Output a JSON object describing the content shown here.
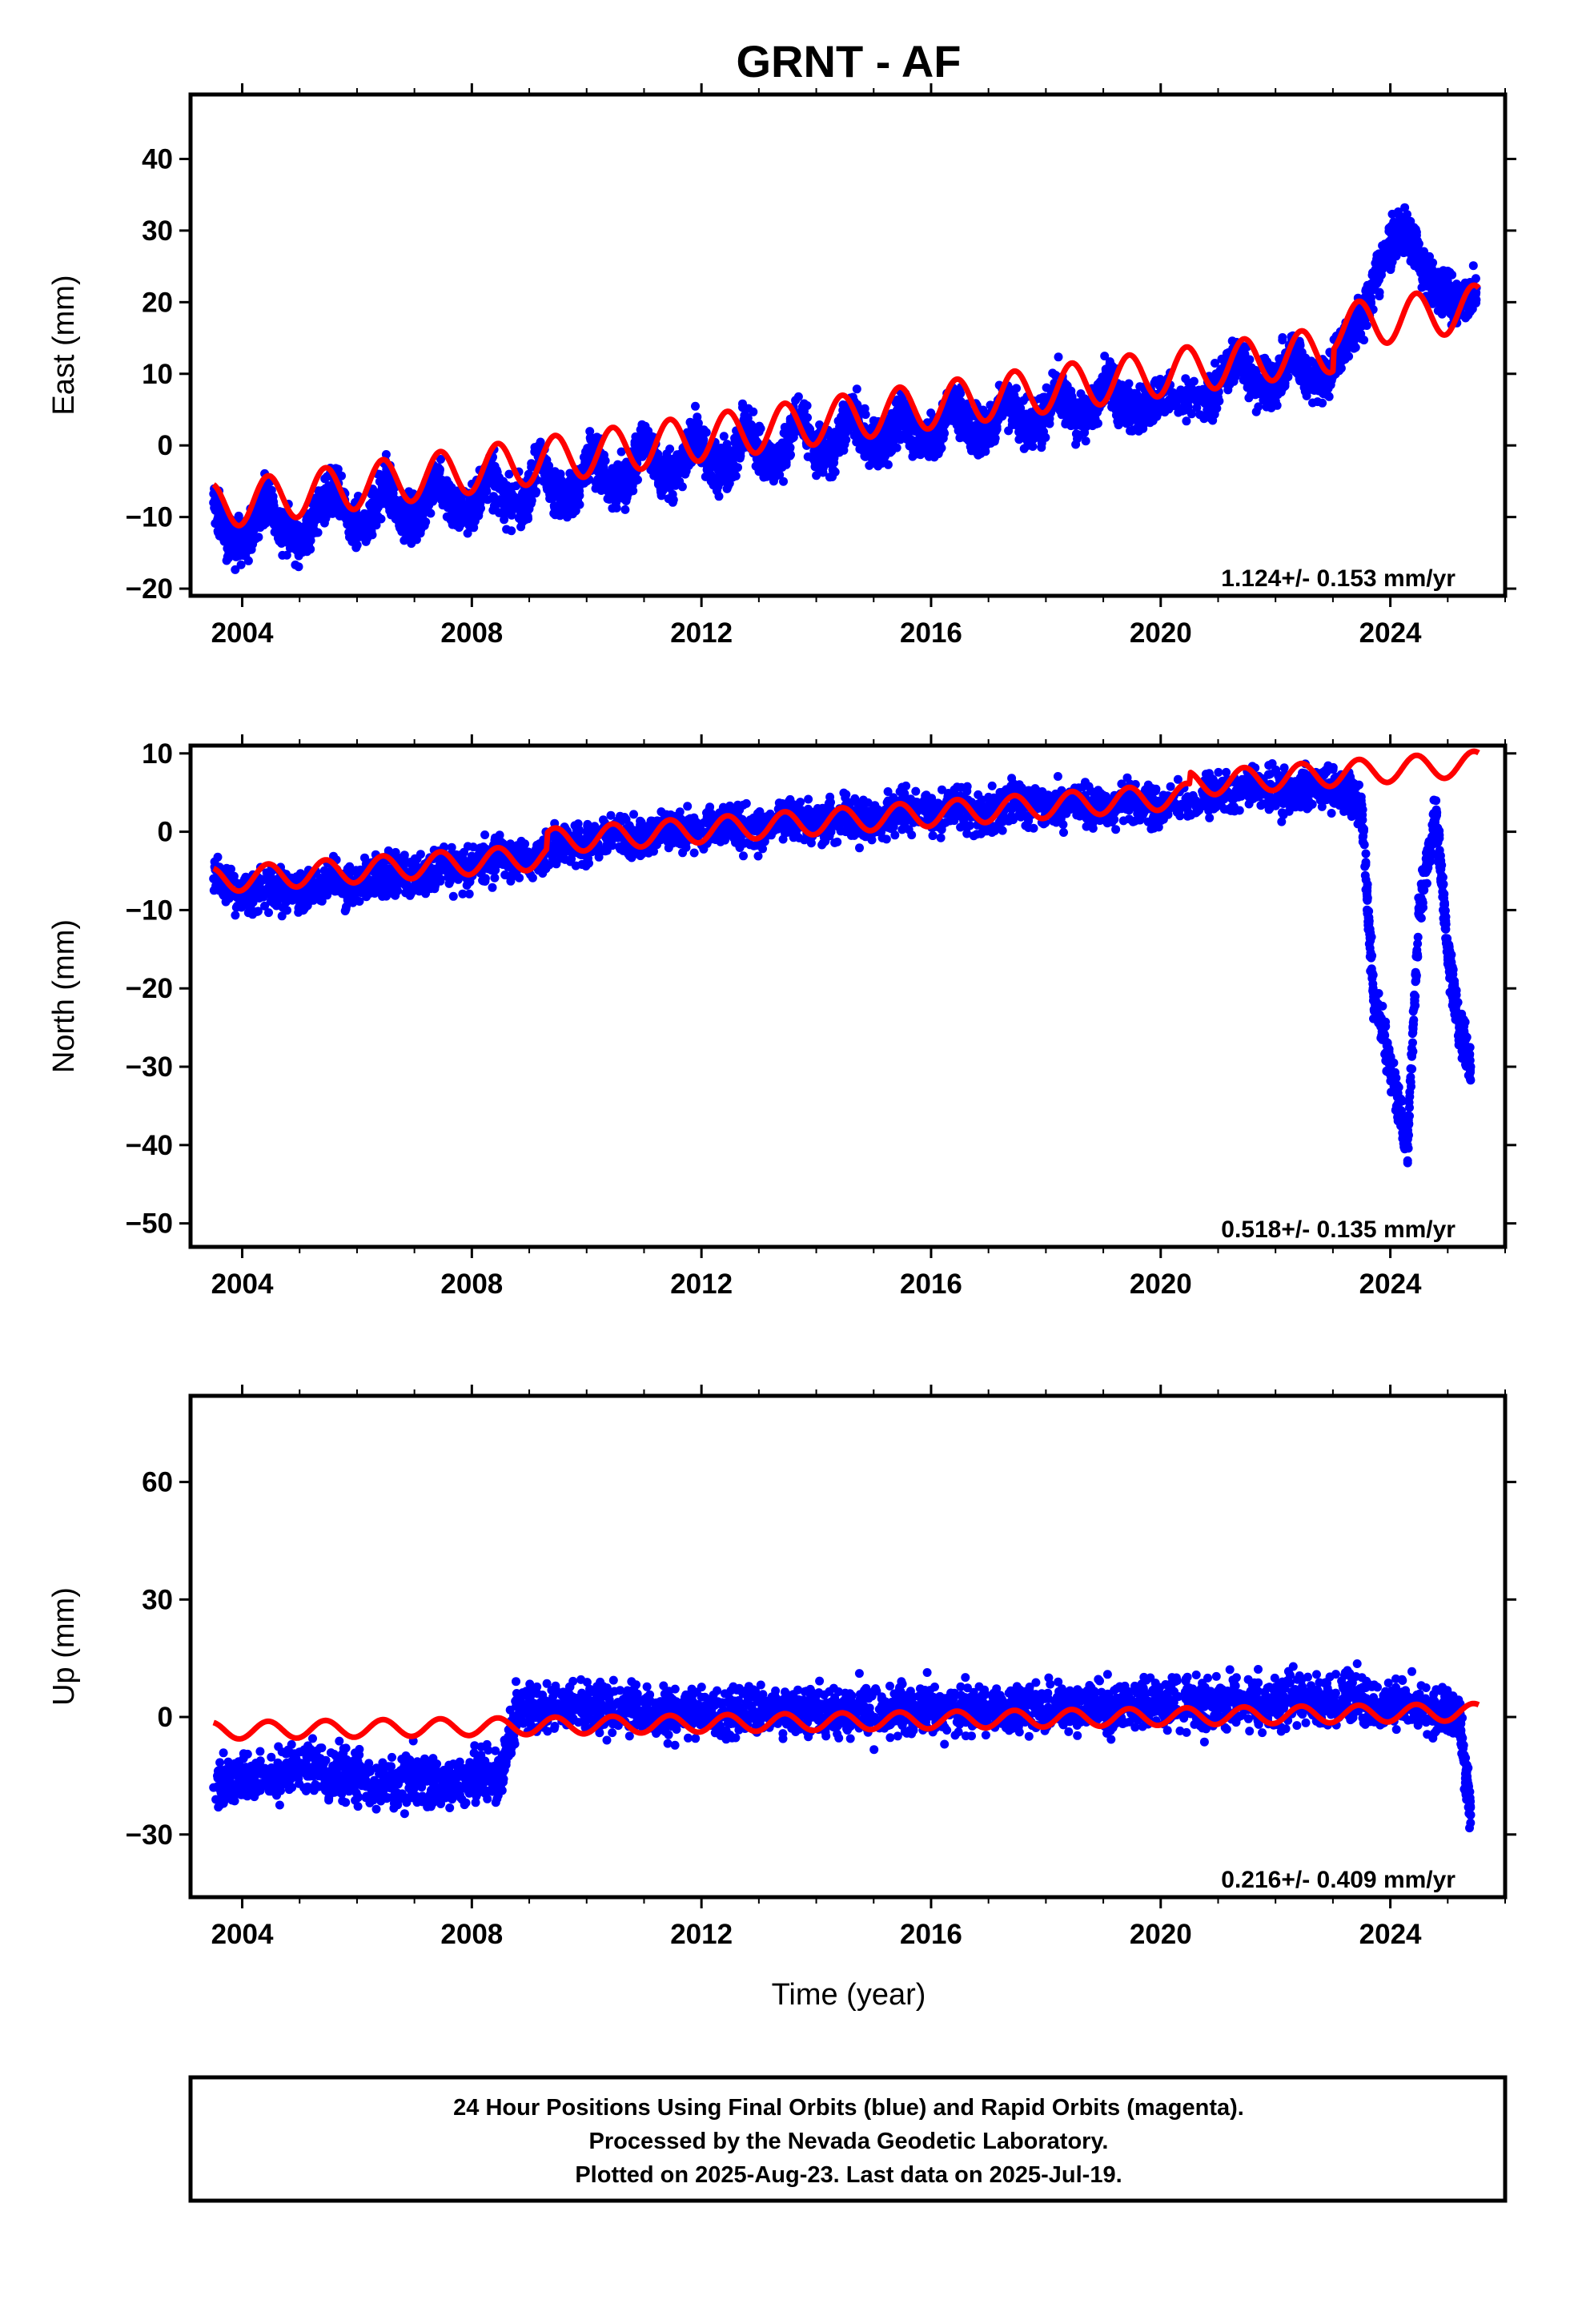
{
  "title": "GRNT - AF",
  "xlabel": "Time (year)",
  "footer": {
    "line1": "24 Hour Positions Using Final Orbits (blue) and Rapid Orbits (magenta).",
    "line2": "Processed by the Nevada Geodetic Laboratory.",
    "line3": "Plotted on 2025-Aug-23. Last data on 2025-Jul-19."
  },
  "colors": {
    "data": "#0000ff",
    "model": "#ff0000",
    "axis": "#000000"
  },
  "chart_data": [
    {
      "type": "scatter",
      "id": "east",
      "ylabel": "East (mm)",
      "rate_text": "1.124+/- 0.153 mm/yr",
      "xlim": [
        2003.1,
        2026.0
      ],
      "ylim": [
        -21,
        49
      ],
      "xticks": [
        2004,
        2008,
        2012,
        2016,
        2020,
        2024
      ],
      "yticks": [
        -20,
        -10,
        0,
        10,
        20,
        30,
        40
      ],
      "grid": false,
      "series": [
        {
          "kind": "points",
          "x": [
            2003.5,
            2003.8,
            2004.1,
            2004.4,
            2004.7,
            2005.0,
            2005.3,
            2005.6,
            2005.9,
            2006.2,
            2006.5,
            2006.8,
            2007.1,
            2007.4,
            2007.7,
            2008.0,
            2008.3,
            2008.6,
            2008.9,
            2009.2,
            2009.5,
            2009.8,
            2010.1,
            2010.4,
            2010.7,
            2011.0,
            2011.3,
            2011.6,
            2011.9,
            2012.2,
            2012.5,
            2012.8,
            2013.1,
            2013.4,
            2013.7,
            2014.0,
            2014.3,
            2014.6,
            2014.9,
            2015.2,
            2015.5,
            2015.8,
            2016.1,
            2016.4,
            2016.7,
            2017.0,
            2017.3,
            2017.6,
            2017.9,
            2018.2,
            2018.5,
            2018.8,
            2019.1,
            2019.4,
            2019.7,
            2020.0,
            2020.8,
            2021.1,
            2021.4,
            2021.7,
            2022.0,
            2022.3,
            2022.6,
            2022.9,
            2023.2,
            2023.5,
            2023.8,
            2024.1,
            2024.4,
            2024.7,
            2025.0,
            2025.3,
            2025.5
          ],
          "y": [
            -8,
            -14,
            -13,
            -7,
            -12,
            -13,
            -10,
            -6,
            -11,
            -11,
            -5,
            -10,
            -10,
            -4,
            -9,
            -9,
            -4,
            -8,
            -8,
            -2,
            -7,
            -7,
            -1,
            -6,
            -5,
            1,
            -4,
            -4,
            2,
            -3,
            -3,
            3,
            -2,
            -2,
            4,
            -1,
            -1,
            5,
            0,
            0,
            5,
            1,
            1,
            6,
            2,
            2,
            7,
            3,
            3,
            8,
            4,
            4,
            9,
            5,
            5,
            7,
            6,
            10,
            12,
            8,
            9,
            13,
            9,
            10,
            14,
            18,
            24,
            30,
            28,
            23,
            21,
            20,
            22
          ],
          "spread": 3.0
        },
        {
          "kind": "line",
          "name": "",
          "x0": 2003.5,
          "x1": 2025.55,
          "intercept_at_2003_5": -8.5,
          "slope": 1.124,
          "annual_amplitude": 3.2,
          "steps": [
            [
              2023.0,
              3.0
            ]
          ]
        }
      ]
    },
    {
      "type": "scatter",
      "id": "north",
      "ylabel": "North (mm)",
      "rate_text": "0.518+/- 0.135 mm/yr",
      "xlim": [
        2003.1,
        2026.0
      ],
      "ylim": [
        -53,
        11
      ],
      "xticks": [
        2004,
        2008,
        2012,
        2016,
        2020,
        2024
      ],
      "yticks": [
        -50,
        -40,
        -30,
        -20,
        -10,
        0,
        10
      ],
      "grid": false,
      "series": [
        {
          "kind": "points",
          "x": [
            2003.5,
            2004.0,
            2004.5,
            2005.0,
            2005.5,
            2006.0,
            2006.5,
            2007.0,
            2007.5,
            2008.0,
            2008.5,
            2009.0,
            2009.5,
            2010.0,
            2010.5,
            2011.0,
            2011.5,
            2012.0,
            2012.5,
            2013.0,
            2013.5,
            2014.0,
            2014.5,
            2015.0,
            2015.5,
            2016.0,
            2016.5,
            2017.0,
            2017.5,
            2018.0,
            2018.5,
            2019.0,
            2019.5,
            2020.0,
            2020.8,
            2021.3,
            2021.8,
            2022.3,
            2022.8,
            2023.2,
            2023.5,
            2023.7,
            2024.0,
            2024.3,
            2024.5,
            2024.8,
            2025.0,
            2025.2,
            2025.4
          ],
          "y": [
            -6,
            -8,
            -7,
            -8,
            -6,
            -7,
            -5,
            -6,
            -4,
            -5,
            -3,
            -4,
            -1,
            -2,
            0,
            -1,
            1,
            0,
            1,
            0,
            2,
            1,
            2,
            1,
            3,
            2,
            3,
            2,
            4,
            3,
            4,
            3,
            4,
            3,
            5,
            5,
            6,
            5,
            6,
            5,
            3,
            -20,
            -30,
            -40,
            -10,
            2,
            -15,
            -25,
            -30
          ],
          "spread": 2.6
        },
        {
          "kind": "line",
          "name": "",
          "x0": 2003.5,
          "x1": 2025.55,
          "intercept_at_2003_5": -6.2,
          "slope": 0.518,
          "annual_amplitude": 1.6,
          "steps": [
            [
              2009.3,
              2.0
            ],
            [
              2020.5,
              1.5
            ]
          ]
        }
      ]
    },
    {
      "type": "scatter",
      "id": "up",
      "ylabel": "Up (mm)",
      "rate_text": "0.216+/- 0.409 mm/yr",
      "xlim": [
        2003.1,
        2026.0
      ],
      "ylim": [
        -46,
        82
      ],
      "xticks": [
        2004,
        2008,
        2012,
        2016,
        2020,
        2024
      ],
      "yticks": [
        -30,
        0,
        30,
        60
      ],
      "grid": false,
      "series": [
        {
          "kind": "points",
          "x": [
            2003.5,
            2004.0,
            2004.5,
            2005.0,
            2005.5,
            2006.0,
            2006.5,
            2007.0,
            2007.5,
            2008.0,
            2008.5,
            2008.8,
            2009.3,
            2009.8,
            2010.3,
            2010.8,
            2011.3,
            2011.8,
            2012.3,
            2012.8,
            2013.3,
            2013.8,
            2014.3,
            2014.8,
            2015.3,
            2015.8,
            2016.3,
            2016.8,
            2017.3,
            2017.8,
            2018.3,
            2018.8,
            2019.3,
            2019.8,
            2020.2,
            2020.8,
            2021.3,
            2021.8,
            2022.3,
            2022.8,
            2023.3,
            2023.8,
            2024.3,
            2024.8,
            2025.2,
            2025.4
          ],
          "y": [
            -18,
            -15,
            -16,
            -12,
            -14,
            -16,
            -18,
            -15,
            -17,
            -16,
            -15,
            3,
            2,
            4,
            2,
            3,
            1,
            2,
            0,
            3,
            1,
            2,
            0,
            2,
            1,
            3,
            1,
            2,
            2,
            3,
            2,
            3,
            3,
            4,
            4,
            3,
            4,
            3,
            5,
            4,
            6,
            3,
            4,
            2,
            0,
            -25
          ],
          "spread": 6.0
        },
        {
          "kind": "line",
          "name": "",
          "x0": 2003.5,
          "x1": 2025.55,
          "intercept_at_2003_5": -3.5,
          "slope": 0.216,
          "annual_amplitude": 2.2,
          "steps": []
        }
      ]
    }
  ]
}
